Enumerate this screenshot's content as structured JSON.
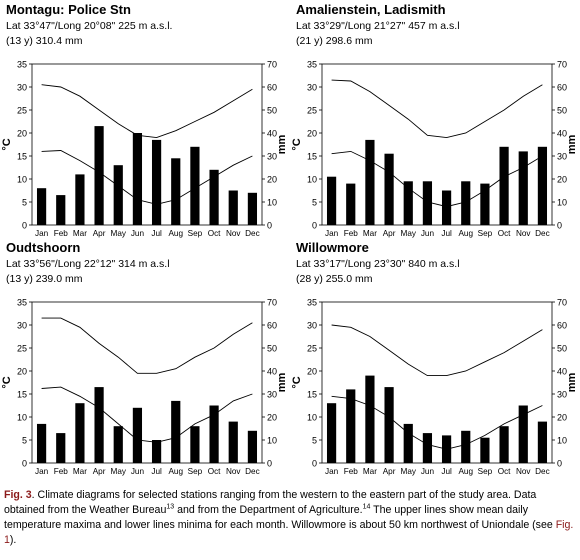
{
  "chart_data": [
    {
      "type": "bar",
      "title": "Montagu: Police Stn",
      "subtitle": "Lat 33°47\"/Long 20°08\" 225 m a.s.l.",
      "subtitle2": "(13 y) 310.4 mm",
      "categories": [
        "Jan",
        "Feb",
        "Mar",
        "Apr",
        "May",
        "Jun",
        "Jul",
        "Aug",
        "Sep",
        "Oct",
        "Nov",
        "Dec"
      ],
      "ylabel_left": "°C",
      "ylabel_right": "mm",
      "ylim_left": [
        0,
        35
      ],
      "ylim_right": [
        0,
        70
      ],
      "yticks_left": [
        "0",
        "5",
        "10",
        "15",
        "20",
        "25",
        "30",
        "35"
      ],
      "yticks_right": [
        "0",
        "10",
        "20",
        "30",
        "40",
        "50",
        "60",
        "70"
      ],
      "bars_mm": [
        16,
        13,
        22,
        43,
        26,
        40,
        37,
        29,
        34,
        24,
        15,
        14
      ],
      "temp_max": [
        30.5,
        30.0,
        28.0,
        25.0,
        22.0,
        19.5,
        19.0,
        20.5,
        22.5,
        24.5,
        27.0,
        29.5
      ],
      "temp_min": [
        16.0,
        16.2,
        14.0,
        11.5,
        8.5,
        5.5,
        4.5,
        5.5,
        8.0,
        10.5,
        13.0,
        15.0
      ]
    },
    {
      "type": "bar",
      "title": "Amalienstein, Ladismith",
      "subtitle": "Lat 33°29\"/Long 21°27\" 457 m a.s.l",
      "subtitle2": "(21 y) 298.6 mm",
      "categories": [
        "Jan",
        "Feb",
        "Mar",
        "Apr",
        "May",
        "Jun",
        "Jul",
        "Aug",
        "Sep",
        "Oct",
        "Nov",
        "Dec"
      ],
      "ylabel_left": "°C",
      "ylabel_right": "mm",
      "ylim_left": [
        0,
        35
      ],
      "ylim_right": [
        0,
        70
      ],
      "yticks_left": [
        "0",
        "5",
        "10",
        "15",
        "20",
        "25",
        "30",
        "35"
      ],
      "yticks_right": [
        "0",
        "10",
        "20",
        "30",
        "40",
        "50",
        "60",
        "70"
      ],
      "bars_mm": [
        21,
        18,
        37,
        31,
        19,
        19,
        15,
        19,
        18,
        34,
        32,
        34
      ],
      "temp_max": [
        31.5,
        31.3,
        29.0,
        26.0,
        23.0,
        19.5,
        19.0,
        20.0,
        22.5,
        25.0,
        28.0,
        30.5
      ],
      "temp_min": [
        15.5,
        16.0,
        14.0,
        11.5,
        8.0,
        5.0,
        4.0,
        5.0,
        7.5,
        10.5,
        12.5,
        15.0
      ]
    },
    {
      "type": "bar",
      "title": "Oudtshoorn",
      "subtitle": "Lat 33°56\"/Long 22°12\" 314 m a.s.l",
      "subtitle2": "(13 y) 239.0 mm",
      "categories": [
        "Jan",
        "Feb",
        "Mar",
        "Apr",
        "May",
        "Jun",
        "Jul",
        "Aug",
        "Sep",
        "Oct",
        "Nov",
        "Dec"
      ],
      "ylabel_left": "°C",
      "ylabel_right": "mm",
      "ylim_left": [
        0,
        35
      ],
      "ylim_right": [
        0,
        70
      ],
      "yticks_left": [
        "0",
        "5",
        "10",
        "15",
        "20",
        "25",
        "30",
        "35"
      ],
      "yticks_right": [
        "0",
        "10",
        "20",
        "30",
        "40",
        "50",
        "60",
        "70"
      ],
      "bars_mm": [
        17,
        13,
        26,
        33,
        16,
        24,
        10,
        27,
        16,
        25,
        18,
        14
      ],
      "temp_max": [
        31.5,
        31.5,
        29.5,
        26.0,
        23.0,
        19.5,
        19.5,
        20.5,
        23.0,
        25.0,
        28.0,
        30.5
      ],
      "temp_min": [
        16.2,
        16.5,
        14.5,
        12.0,
        8.5,
        5.0,
        4.5,
        5.5,
        8.5,
        10.5,
        13.5,
        15.0
      ]
    },
    {
      "type": "bar",
      "title": "Willowmore",
      "subtitle": "Lat 33°17\"/Long 23°30\" 840 m a.s.l",
      "subtitle2": "(28 y) 255.0 mm",
      "categories": [
        "Jan",
        "Feb",
        "Mar",
        "Apr",
        "May",
        "Jun",
        "Jul",
        "Aug",
        "Sep",
        "Oct",
        "Nov",
        "Dec"
      ],
      "ylabel_left": "°C",
      "ylabel_right": "mm",
      "ylim_left": [
        0,
        35
      ],
      "ylim_right": [
        0,
        70
      ],
      "yticks_left": [
        "0",
        "5",
        "10",
        "15",
        "20",
        "25",
        "30",
        "35"
      ],
      "yticks_right": [
        "0",
        "10",
        "20",
        "30",
        "40",
        "50",
        "60",
        "70"
      ],
      "bars_mm": [
        26,
        32,
        38,
        33,
        17,
        13,
        12,
        14,
        11,
        16,
        25,
        18
      ],
      "temp_max": [
        30.0,
        29.5,
        27.5,
        24.5,
        21.5,
        19.0,
        19.0,
        20.0,
        22.0,
        24.0,
        26.5,
        29.0
      ],
      "temp_min": [
        14.5,
        14.0,
        12.5,
        10.0,
        6.5,
        4.0,
        3.0,
        4.0,
        6.0,
        8.5,
        10.5,
        12.5
      ]
    }
  ],
  "caption": {
    "fig_label": "Fig. 3",
    "text_1": ".  Climate diagrams for selected stations ranging from the western to the eastern part of the study area. Data obtained from the Weather Bureau",
    "ref_1": "13",
    "text_2": " and from the Department of Agriculture.",
    "ref_2": "14",
    "text_3": " The upper lines show mean daily temperature maxima and lower lines minima for each month. Willowmore is about 50 km northwest of Uniondale (see ",
    "link": "Fig. 1",
    "text_4": ")."
  }
}
